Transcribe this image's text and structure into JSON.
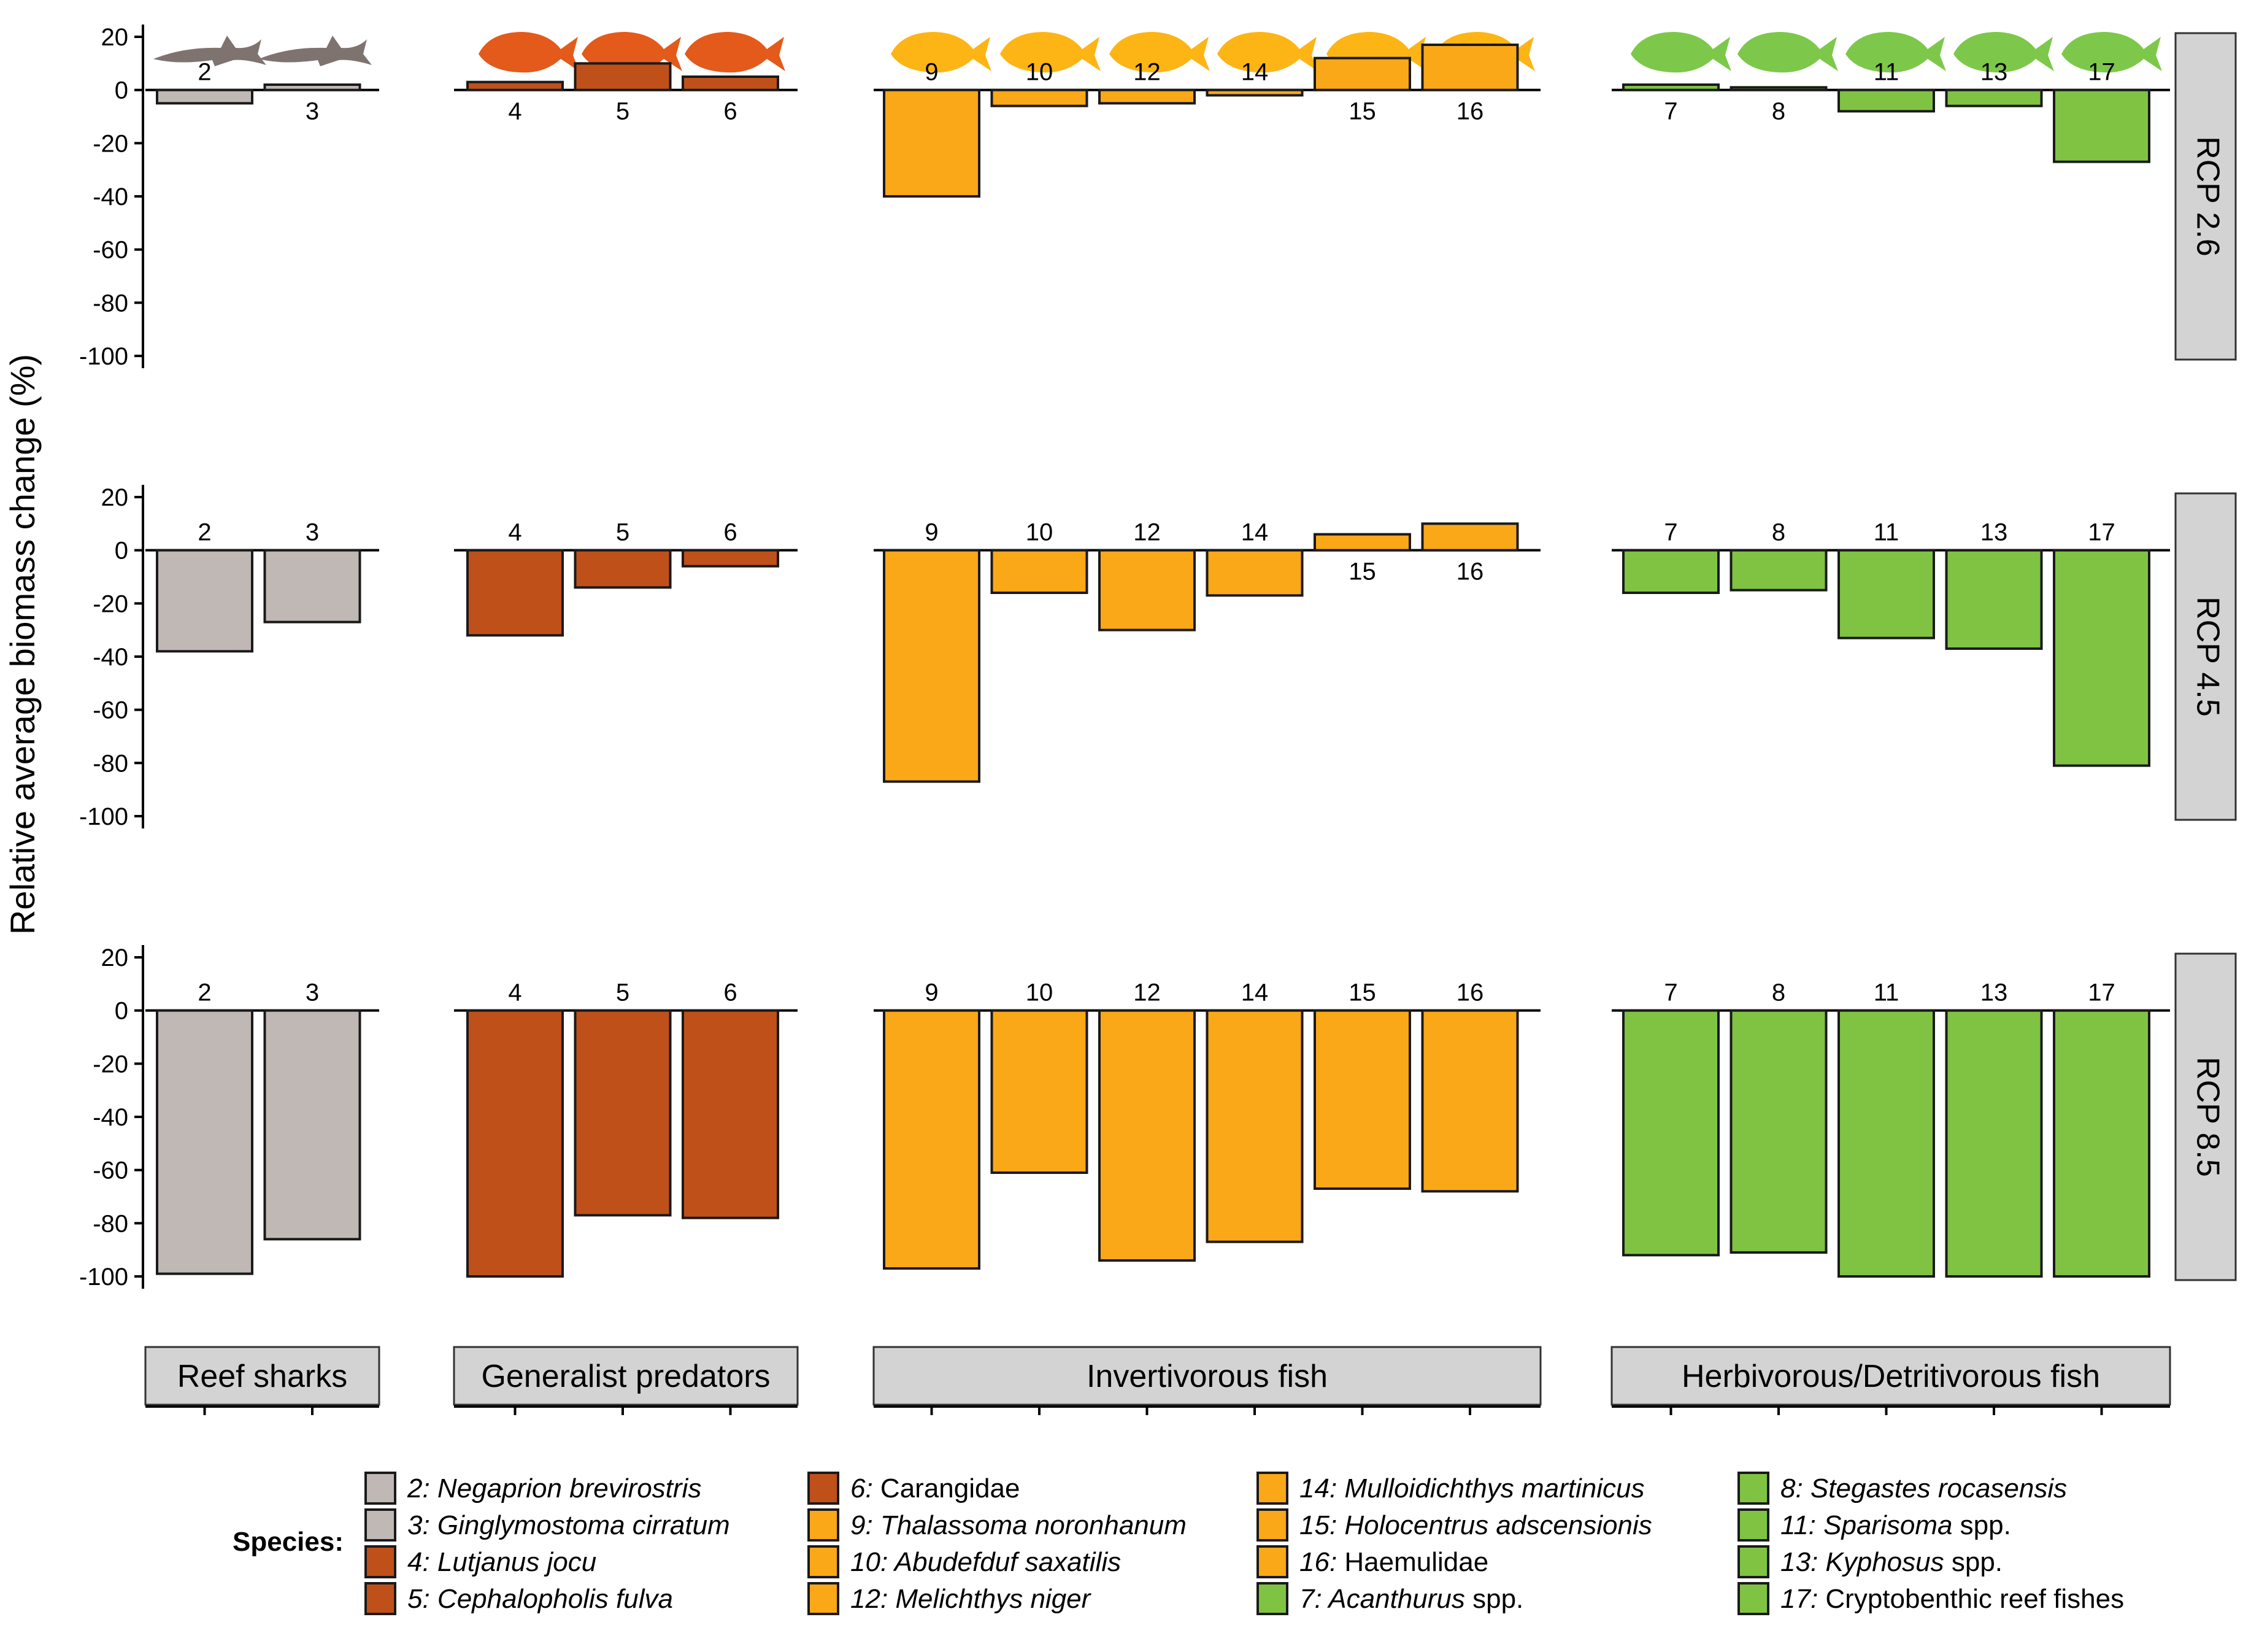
{
  "chart_data": {
    "type": "bar",
    "ylabel": "Relative average biomass change (%)",
    "ylim": [
      -100,
      20
    ],
    "yticks": [
      20,
      0,
      -20,
      -40,
      -60,
      -80,
      -100
    ],
    "grid": false,
    "legend_title": "Species:",
    "groups": [
      {
        "name": "Reef sharks",
        "color": "#c0b8b4",
        "species": [
          "2",
          "3"
        ]
      },
      {
        "name": "Generalist predators",
        "color": "#c0501a",
        "species": [
          "4",
          "5",
          "6"
        ]
      },
      {
        "name": "Invertivorous fish",
        "color": "#fba818",
        "species": [
          "9",
          "10",
          "12",
          "14",
          "15",
          "16"
        ]
      },
      {
        "name": "Herbivorous/Detritivorous fish",
        "color": "#80c342",
        "species": [
          "7",
          "8",
          "11",
          "13",
          "17"
        ]
      }
    ],
    "series": [
      {
        "name": "RCP 2.6",
        "values": {
          "2": -5,
          "3": 2,
          "4": 3,
          "5": 10,
          "6": 5,
          "9": -40,
          "10": -6,
          "12": -5,
          "14": -2,
          "15": 12,
          "16": 17,
          "7": 2,
          "8": 1,
          "11": -8,
          "13": -6,
          "17": -27
        }
      },
      {
        "name": "RCP 4.5",
        "values": {
          "2": -38,
          "3": -27,
          "4": -32,
          "5": -14,
          "6": -6,
          "9": -87,
          "10": -16,
          "12": -30,
          "14": -17,
          "15": 6,
          "16": 10,
          "7": -16,
          "8": -15,
          "11": -33,
          "13": -37,
          "17": -81
        }
      },
      {
        "name": "RCP 8.5",
        "values": {
          "2": -99,
          "3": -86,
          "4": -100,
          "5": -77,
          "6": -78,
          "9": -97,
          "10": -61,
          "12": -94,
          "14": -87,
          "15": -67,
          "16": -68,
          "7": -92,
          "8": -91,
          "11": -100,
          "13": -100,
          "17": -100
        }
      }
    ],
    "legend": [
      {
        "num": "2",
        "name": "Negaprion brevirostris",
        "suffix": "",
        "italic": true,
        "color": "#c0b8b4"
      },
      {
        "num": "3",
        "name": "Ginglymostoma cirratum",
        "suffix": "",
        "italic": true,
        "color": "#c0b8b4"
      },
      {
        "num": "4",
        "name": "Lutjanus jocu",
        "suffix": "",
        "italic": true,
        "color": "#c0501a"
      },
      {
        "num": "5",
        "name": "Cephalopholis fulva",
        "suffix": "",
        "italic": true,
        "color": "#c0501a"
      },
      {
        "num": "6",
        "name": "Carangidae",
        "suffix": "",
        "italic": false,
        "color": "#c0501a"
      },
      {
        "num": "9",
        "name": "Thalassoma noronhanum",
        "suffix": "",
        "italic": true,
        "color": "#fba818"
      },
      {
        "num": "10",
        "name": "Abudefduf saxatilis",
        "suffix": "",
        "italic": true,
        "color": "#fba818"
      },
      {
        "num": "12",
        "name": "Melichthys niger",
        "suffix": "",
        "italic": true,
        "color": "#fba818"
      },
      {
        "num": "14",
        "name": "Mulloidichthys martinicus",
        "suffix": "",
        "italic": true,
        "color": "#fba818"
      },
      {
        "num": "15",
        "name": "Holocentrus adscensionis",
        "suffix": "",
        "italic": true,
        "color": "#fba818"
      },
      {
        "num": "16",
        "name": "Haemulidae",
        "suffix": "",
        "italic": false,
        "color": "#fba818"
      },
      {
        "num": "7",
        "name": "Acanthurus",
        "suffix": " spp.",
        "italic": true,
        "color": "#80c342"
      },
      {
        "num": "8",
        "name": "Stegastes rocasensis",
        "suffix": "",
        "italic": true,
        "color": "#80c342"
      },
      {
        "num": "11",
        "name": "Sparisoma",
        "suffix": " spp.",
        "italic": true,
        "color": "#80c342"
      },
      {
        "num": "13",
        "name": "Kyphosus",
        "suffix": " spp.",
        "italic": true,
        "color": "#80c342"
      },
      {
        "num": "17",
        "name": "Cryptobenthic reef fishes",
        "suffix": "",
        "italic": false,
        "color": "#80c342"
      }
    ],
    "silhouette_colors": {
      "Reef sharks": "#7f7370",
      "Generalist predators": "#e35a1b",
      "Invertivorous fish": "#fdb515",
      "Herbivorous/Detritivorous fish": "#7dc84a"
    }
  }
}
